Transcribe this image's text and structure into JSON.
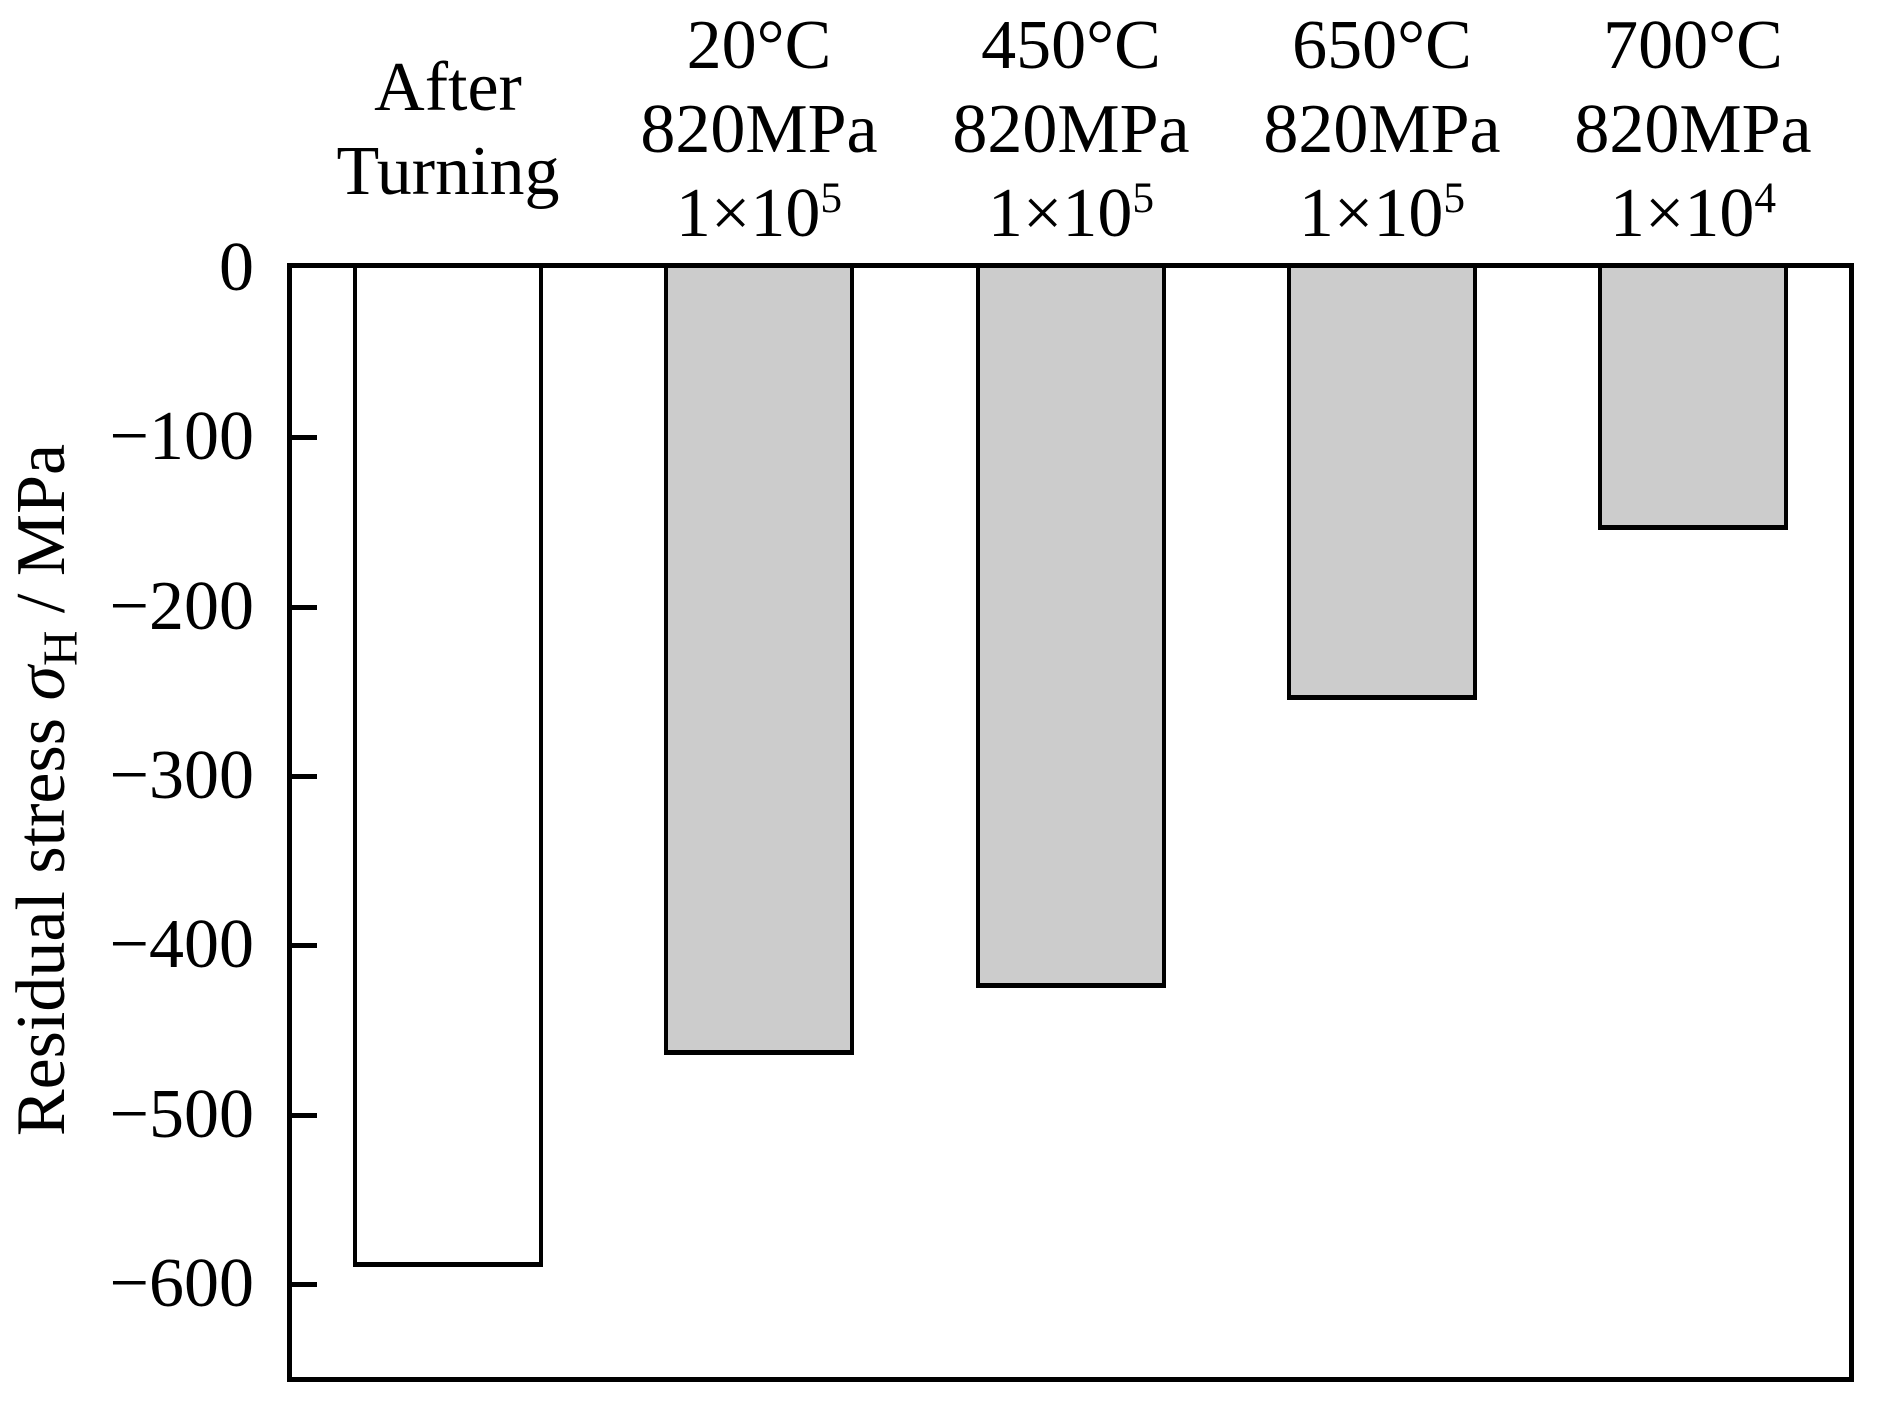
{
  "figure": {
    "background_color": "#ffffff",
    "ink_color": "#000000",
    "bar_fill_gray": "#cccccc",
    "bar_fill_white": "#ffffff"
  },
  "chart_data": {
    "type": "bar",
    "title": "",
    "ylabel": {
      "prefix": "Residual stress ",
      "symbol": "σ",
      "subscript": "H",
      "suffix": " / MPa"
    },
    "categories": [
      {
        "name": "after-turning",
        "lines": [
          "After",
          "Turning"
        ],
        "cycles_base": "",
        "cycles_exp": ""
      },
      {
        "name": "20c-820mpa-1e5",
        "lines": [
          "20°C",
          "820MPa"
        ],
        "cycles_base": "1×10",
        "cycles_exp": "5"
      },
      {
        "name": "450c-820mpa-1e5",
        "lines": [
          "450°C",
          "820MPa"
        ],
        "cycles_base": "1×10",
        "cycles_exp": "5"
      },
      {
        "name": "650c-820mpa-1e5",
        "lines": [
          "650°C",
          "820MPa"
        ],
        "cycles_base": "1×10",
        "cycles_exp": "5"
      },
      {
        "name": "700c-820mpa-1e4",
        "lines": [
          "700°C",
          "820MPa"
        ],
        "cycles_base": "1×10",
        "cycles_exp": "4"
      }
    ],
    "values": [
      -590,
      -465,
      -425,
      -255,
      -155
    ],
    "bar_fills": [
      "#ffffff",
      "#cccccc",
      "#cccccc",
      "#cccccc",
      "#cccccc"
    ],
    "bar_border_color": "#000000",
    "yticks": [
      "0",
      "−100",
      "−200",
      "−300",
      "−400",
      "−500",
      "−600"
    ],
    "ytick_values": [
      0,
      -100,
      -200,
      -300,
      -400,
      -500,
      -600
    ],
    "ylim": [
      -655,
      0
    ],
    "xlabel": "",
    "grid": false,
    "legend": "none"
  }
}
